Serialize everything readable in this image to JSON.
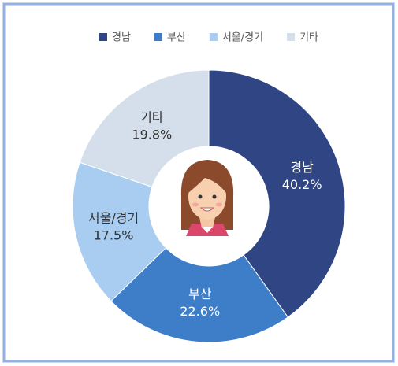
{
  "chart_data": {
    "type": "donut",
    "categories": [
      "경남",
      "부산",
      "서울/경기",
      "기타"
    ],
    "values": [
      40.2,
      22.6,
      17.5,
      19.8
    ],
    "value_labels": [
      "40.2%",
      "22.6%",
      "17.5%",
      "19.8%"
    ],
    "colors": [
      "#2f4584",
      "#3e7dc8",
      "#a8cdf0",
      "#d5dfeb"
    ],
    "legend": "top"
  }
}
